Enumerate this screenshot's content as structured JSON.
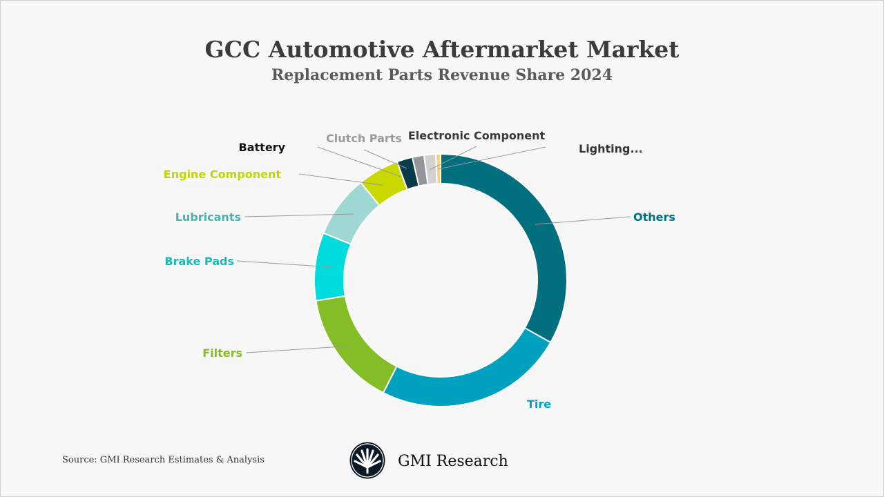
{
  "chart_data": {
    "type": "pie",
    "donut": true,
    "title": "GCC Automotive Aftermarket Market",
    "subtitle": "Replacement Parts Revenue Share 2024",
    "unit": "% share (estimated from graphic)",
    "slices": [
      {
        "label": "Others",
        "value": 33.2,
        "color": "#026f7e",
        "label_color": "#026f7e"
      },
      {
        "label": "Tire",
        "value": 24.3,
        "color": "#00a0bf",
        "label_color": "#00a0bf"
      },
      {
        "label": "Filters",
        "value": 14.9,
        "color": "#84bd26",
        "label_color": "#84bd26"
      },
      {
        "label": "Brake Pads",
        "value": 8.7,
        "color": "#00dcdc",
        "label_color": "#1fb5b5"
      },
      {
        "label": "Lubricants",
        "value": 8.0,
        "color": "#9fd8d3",
        "label_color": "#4fb0a8"
      },
      {
        "label": "Engine Component",
        "value": 5.3,
        "color": "#c9d800",
        "label_color": "#c4d400"
      },
      {
        "label": "Battery",
        "value": 2.0,
        "color": "#0a3b4a",
        "label_color": "#111111"
      },
      {
        "label": "Clutch Parts",
        "value": 1.5,
        "color": "#939598",
        "label_color": "#9a9a9a"
      },
      {
        "label": "Electronic Component",
        "value": 1.5,
        "color": "#d3d1d1",
        "label_color": "#3a3a3a"
      },
      {
        "label": "Lighting...",
        "value": 0.6,
        "color": "#f5d57a",
        "label_color": "#333333"
      }
    ]
  },
  "footer": {
    "source": "Source: GMI Research Estimates & Analysis",
    "brand": "GMI Research"
  }
}
